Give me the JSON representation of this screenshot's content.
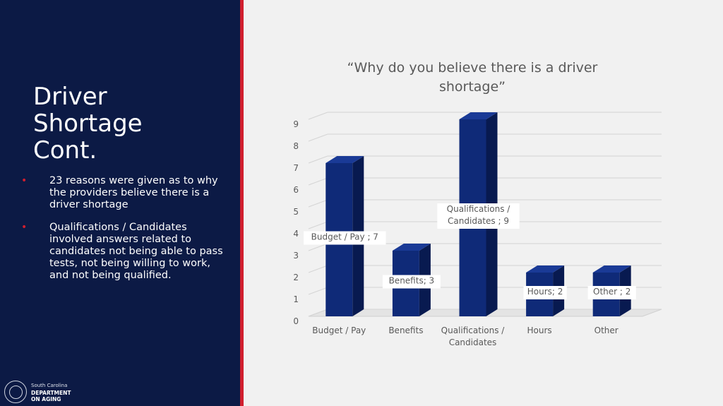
{
  "slide": {
    "title": "Driver\nShortage\nCont.",
    "bullets": [
      "23 reasons were given as to why the providers believe there is a driver shortage",
      "Qualifications / Candidates involved answers related to candidates not being able to pass tests, not being willing to work, and not being qualified."
    ],
    "bullet_glyph": "•"
  },
  "logo": {
    "org_small": "South Carolina",
    "org_big": "DEPARTMENT\nON AGING"
  },
  "colors": {
    "panel": "#0c1a45",
    "accent": "#d01f2e",
    "bar_front": "#0f2a78",
    "bar_side": "#081a50",
    "bar_top": "#1a3a96"
  },
  "chart_data": {
    "type": "bar",
    "style": "3d-column",
    "title_lines": [
      "“Why do you believe there is a driver",
      "shortage”"
    ],
    "categories": [
      [
        "Budget / Pay"
      ],
      [
        "Benefits"
      ],
      [
        "Qualifications /",
        "Candidates"
      ],
      [
        "Hours"
      ],
      [
        "Other"
      ]
    ],
    "values": [
      7,
      3,
      9,
      2,
      2
    ],
    "data_labels": [
      [
        "Budget / Pay ; 7"
      ],
      [
        "Benefits; 3"
      ],
      [
        "Qualifications /",
        "Candidates ; 9"
      ],
      [
        "Hours; 2"
      ],
      [
        "Other ; 2"
      ]
    ],
    "yticks": [
      0,
      1,
      2,
      3,
      4,
      5,
      6,
      7,
      8,
      9
    ],
    "ylim": [
      0,
      9
    ],
    "grid": true,
    "legend": "none"
  }
}
